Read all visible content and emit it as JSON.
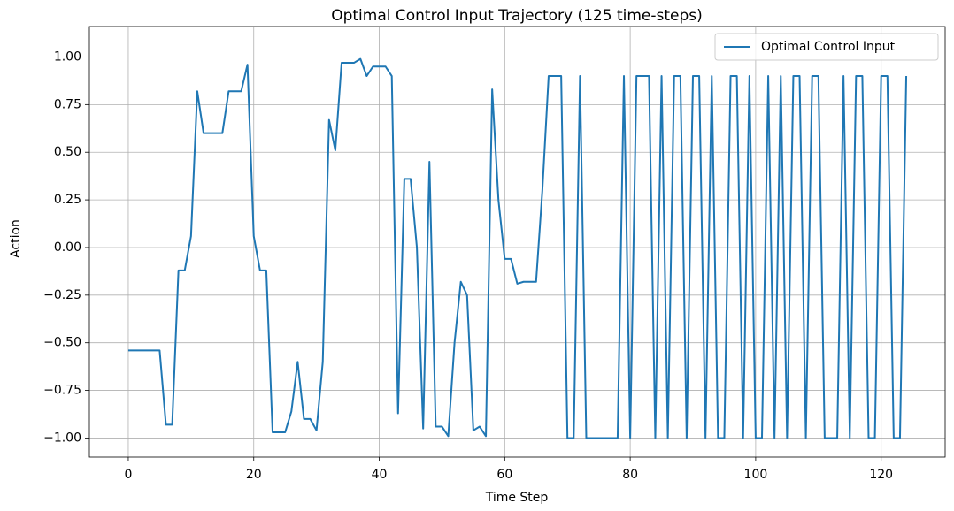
{
  "chart_data": {
    "type": "line",
    "title": "Optimal Control Input Trajectory (125 time-steps)",
    "xlabel": "Time Step",
    "ylabel": "Action",
    "x": [
      0,
      1,
      2,
      3,
      4,
      5,
      6,
      7,
      8,
      9,
      10,
      11,
      12,
      13,
      14,
      15,
      16,
      17,
      18,
      19,
      20,
      21,
      22,
      23,
      24,
      25,
      26,
      27,
      28,
      29,
      30,
      31,
      32,
      33,
      34,
      35,
      36,
      37,
      38,
      39,
      40,
      41,
      42,
      43,
      44,
      45,
      46,
      47,
      48,
      49,
      50,
      51,
      52,
      53,
      54,
      55,
      56,
      57,
      58,
      59,
      60,
      61,
      62,
      63,
      64,
      65,
      66,
      67,
      68,
      69,
      70,
      71,
      72,
      73,
      74,
      75,
      76,
      77,
      78,
      79,
      80,
      81,
      82,
      83,
      84,
      85,
      86,
      87,
      88,
      89,
      90,
      91,
      92,
      93,
      94,
      95,
      96,
      97,
      98,
      99,
      100,
      101,
      102,
      103,
      104,
      105,
      106,
      107,
      108,
      109,
      110,
      111,
      112,
      113,
      114,
      115,
      116,
      117,
      118,
      119,
      120,
      121,
      122,
      123,
      124
    ],
    "series": [
      {
        "name": "Optimal Control Input",
        "color": "#1f77b4",
        "values": [
          -0.54,
          -0.54,
          -0.54,
          -0.54,
          -0.54,
          -0.54,
          -0.93,
          -0.93,
          -0.12,
          -0.12,
          0.06,
          0.82,
          0.6,
          0.6,
          0.6,
          0.6,
          0.82,
          0.82,
          0.82,
          0.96,
          0.06,
          -0.12,
          -0.12,
          -0.97,
          -0.97,
          -0.97,
          -0.86,
          -0.6,
          -0.9,
          -0.9,
          -0.96,
          -0.6,
          0.67,
          0.51,
          0.97,
          0.97,
          0.97,
          0.99,
          0.9,
          0.95,
          0.95,
          0.95,
          0.9,
          -0.87,
          0.36,
          0.36,
          0.0,
          -0.95,
          0.45,
          -0.94,
          -0.94,
          -0.99,
          -0.5,
          -0.18,
          -0.25,
          -0.96,
          -0.94,
          -0.99,
          0.83,
          0.25,
          -0.06,
          -0.06,
          -0.19,
          -0.18,
          -0.18,
          -0.18,
          0.3,
          0.9,
          0.9,
          0.9,
          -1,
          -1,
          0.9,
          -1,
          -1,
          -1,
          -1,
          -1,
          -1,
          0.9,
          -1,
          0.9,
          0.9,
          0.9,
          -1,
          0.9,
          -1,
          0.9,
          0.9,
          -1,
          0.9,
          0.9,
          -1,
          0.9,
          -1,
          -1,
          0.9,
          0.9,
          -1,
          0.9,
          -1,
          -1,
          0.9,
          -1,
          0.9,
          -1,
          0.9,
          0.9,
          -1,
          0.9,
          0.9,
          -1,
          -1,
          -1,
          0.9,
          -1,
          0.9,
          0.9,
          -1,
          -1,
          0.9,
          0.9,
          -1,
          -1,
          0.9
        ]
      }
    ],
    "xlim": [
      -6.2,
      130.2
    ],
    "ylim": [
      -1.1,
      1.16
    ],
    "xticks": [
      0,
      20,
      40,
      60,
      80,
      100,
      120
    ],
    "yticks": [
      {
        "value": 1,
        "label": "1.00"
      },
      {
        "value": 0.75,
        "label": "0.75"
      },
      {
        "value": 0.5,
        "label": "0.50"
      },
      {
        "value": 0.25,
        "label": "0.25"
      },
      {
        "value": 0,
        "label": "0.00"
      },
      {
        "value": -0.25,
        "label": "−0.25"
      },
      {
        "value": -0.5,
        "label": "−0.50"
      },
      {
        "value": -0.75,
        "label": "−0.75"
      },
      {
        "value": -1,
        "label": "−1.00"
      }
    ],
    "grid": true,
    "legend": "upper right"
  }
}
